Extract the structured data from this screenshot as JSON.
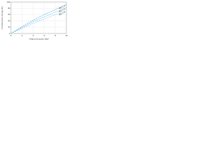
{
  "chart_data": {
    "type": "line",
    "x_label": "Output pressure (bar)",
    "y_label": "Compression energy (%)",
    "x": [
      0,
      2,
      4,
      6,
      8,
      10
    ],
    "series": [
      {
        "name": "Mix 1.5",
        "color": "#3aa0d8",
        "values": [
          0,
          22,
          42,
          60,
          76,
          92
        ]
      },
      {
        "name": "Mix 1.2",
        "color": "#5ab4e4",
        "values": [
          0,
          19,
          37,
          53,
          68,
          82
        ]
      },
      {
        "name": "Mix 1.0",
        "color": "#7cc6ee",
        "values": [
          0,
          16,
          32,
          46,
          60,
          72
        ]
      }
    ],
    "xlim": [
      0,
      10
    ],
    "ylim": [
      0,
      100
    ],
    "xticks": [
      0,
      2,
      4,
      6,
      8,
      10
    ],
    "yticks": [
      0,
      20,
      40,
      60,
      80,
      100
    ],
    "grid": true
  }
}
